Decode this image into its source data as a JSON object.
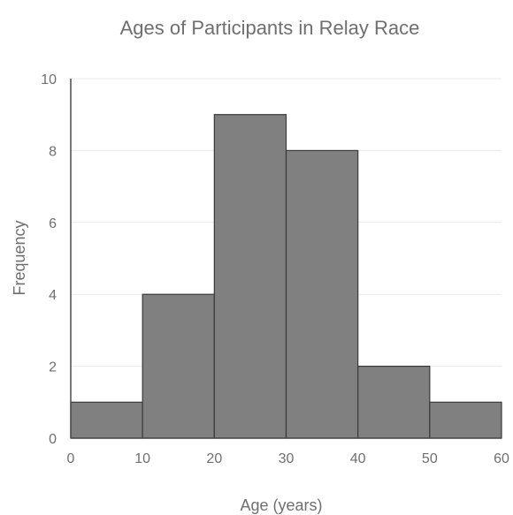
{
  "chart_data": {
    "type": "bar",
    "title": "Ages of Participants in Relay Race",
    "xlabel": "Age (years)",
    "ylabel": "Frequency",
    "bins": [
      {
        "start": 0,
        "end": 10,
        "value": 1
      },
      {
        "start": 10,
        "end": 20,
        "value": 4
      },
      {
        "start": 20,
        "end": 30,
        "value": 9
      },
      {
        "start": 30,
        "end": 40,
        "value": 8
      },
      {
        "start": 40,
        "end": 50,
        "value": 2
      },
      {
        "start": 50,
        "end": 60,
        "value": 1
      }
    ],
    "xlim": [
      0,
      60
    ],
    "ylim": [
      0,
      10
    ],
    "xticks": [
      "0",
      "10",
      "20",
      "30",
      "40",
      "50",
      "60"
    ],
    "yticks": [
      "0",
      "2",
      "4",
      "6",
      "8",
      "10"
    ],
    "grid": true,
    "bar_color": "#808080"
  }
}
